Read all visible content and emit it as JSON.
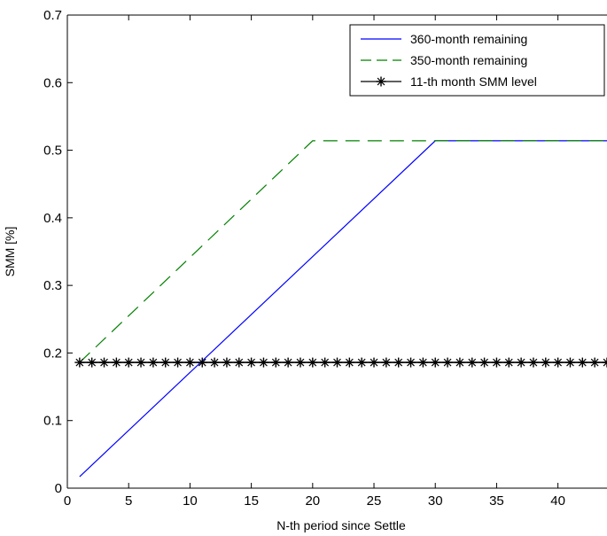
{
  "chart_data": {
    "type": "line",
    "title": "",
    "xlabel": "N-th period since Settle",
    "ylabel": "SMM [%]",
    "xlim": [
      0,
      44
    ],
    "ylim": [
      0,
      0.7
    ],
    "xticks": [
      0,
      5,
      10,
      15,
      20,
      25,
      30,
      35,
      40
    ],
    "yticks": [
      0,
      0.1,
      0.2,
      0.3,
      0.4,
      0.5,
      0.6,
      0.7
    ],
    "xtick_labels": [
      "0",
      "5",
      "10",
      "15",
      "20",
      "25",
      "30",
      "35",
      "40"
    ],
    "ytick_labels": [
      "0",
      "0.1",
      "0.2",
      "0.3",
      "0.4",
      "0.5",
      "0.6",
      "0.7"
    ],
    "grid": false,
    "legend_position": "top-right",
    "series": [
      {
        "name": "360-month remaining",
        "color": "#0000ff",
        "style": "solid",
        "marker": "none",
        "x": [
          1,
          30,
          44
        ],
        "y": [
          0.017,
          0.514,
          0.514
        ]
      },
      {
        "name": "350-month remaining",
        "color": "#008000",
        "style": "dashed",
        "marker": "none",
        "x": [
          1,
          20,
          44
        ],
        "y": [
          0.186,
          0.514,
          0.514
        ]
      },
      {
        "name": "11-th month SMM level",
        "color": "#000000",
        "style": "solid",
        "marker": "star",
        "x": [
          1,
          2,
          3,
          4,
          5,
          6,
          7,
          8,
          9,
          10,
          11,
          12,
          13,
          14,
          15,
          16,
          17,
          18,
          19,
          20,
          21,
          22,
          23,
          24,
          25,
          26,
          27,
          28,
          29,
          30,
          31,
          32,
          33,
          34,
          35,
          36,
          37,
          38,
          39,
          40,
          41,
          42,
          43,
          44
        ],
        "y": [
          0.186,
          0.186,
          0.186,
          0.186,
          0.186,
          0.186,
          0.186,
          0.186,
          0.186,
          0.186,
          0.186,
          0.186,
          0.186,
          0.186,
          0.186,
          0.186,
          0.186,
          0.186,
          0.186,
          0.186,
          0.186,
          0.186,
          0.186,
          0.186,
          0.186,
          0.186,
          0.186,
          0.186,
          0.186,
          0.186,
          0.186,
          0.186,
          0.186,
          0.186,
          0.186,
          0.186,
          0.186,
          0.186,
          0.186,
          0.186,
          0.186,
          0.186,
          0.186,
          0.186
        ]
      }
    ]
  }
}
